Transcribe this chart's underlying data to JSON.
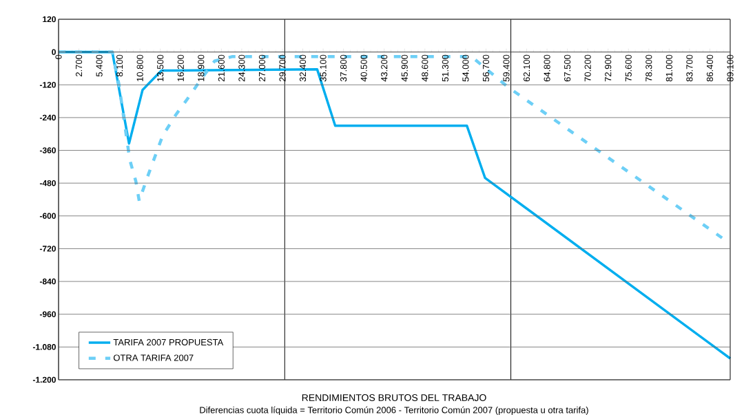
{
  "chart_data": {
    "type": "line",
    "xlabel": "RENDIMIENTOS BRUTOS DEL TRABAJO",
    "annotations": [
      "Diferencias cuota líquida = Territorio Común 2006 - Territorio Común 2007 (propuesta  u otra tarifa)"
    ],
    "series": [
      {
        "name": "TARIFA 2007 PROPUESTA",
        "color": "#00aeef",
        "line_style": "solid",
        "x": [
          0,
          7130,
          9350,
          11140,
          13630,
          34300,
          36700,
          54170,
          56580,
          89100
        ],
        "values": [
          0,
          0,
          -335,
          -139,
          -68,
          -63,
          -270,
          -270,
          -461,
          -1122
        ]
      },
      {
        "name": "OTRA TARIFA 2007",
        "color": "#6dcff6",
        "line_style": "dashed",
        "x": [
          0,
          7130,
          8020,
          9450,
          10250,
          10700,
          11800,
          13800,
          15500,
          17300,
          19000,
          20700,
          23000,
          54800,
          59600,
          88400
        ],
        "values": [
          0,
          0,
          -120,
          -395,
          -473,
          -545,
          -457,
          -307,
          -232,
          -164,
          -96,
          -33,
          -17,
          -17,
          -128,
          -688
        ]
      }
    ],
    "xlim": [
      0,
      89100
    ],
    "xticks": [
      0,
      {
        "value": 2700,
        "label": "2.700"
      },
      {
        "value": 5400,
        "label": "5.400"
      },
      {
        "value": 8100,
        "label": "8.100"
      },
      {
        "value": 10800,
        "label": "10.800"
      },
      {
        "value": 13500,
        "label": "13.500"
      },
      {
        "value": 16200,
        "label": "16.200"
      },
      {
        "value": 18900,
        "label": "18.900"
      },
      {
        "value": 21600,
        "label": "21.600"
      },
      {
        "value": 24300,
        "label": "24.300"
      },
      {
        "value": 27000,
        "label": "27.000"
      },
      {
        "value": 29700,
        "label": "29.700"
      },
      {
        "value": 32400,
        "label": "32.400"
      },
      {
        "value": 35100,
        "label": "35.100"
      },
      {
        "value": 37800,
        "label": "37.800"
      },
      {
        "value": 40500,
        "label": "40.500"
      },
      {
        "value": 43200,
        "label": "43.200"
      },
      {
        "value": 45900,
        "label": "45.900"
      },
      {
        "value": 48600,
        "label": "48.600"
      },
      {
        "value": 51300,
        "label": "51.300"
      },
      {
        "value": 54000,
        "label": "54.000"
      },
      {
        "value": 56700,
        "label": "56.700"
      },
      {
        "value": 59400,
        "label": "59.400"
      },
      {
        "value": 62100,
        "label": "62.100"
      },
      {
        "value": 64800,
        "label": "64.800"
      },
      {
        "value": 67500,
        "label": "67.500"
      },
      {
        "value": 70200,
        "label": "70.200"
      },
      {
        "value": 72900,
        "label": "72.900"
      },
      {
        "value": 75600,
        "label": "75.600"
      },
      {
        "value": 78300,
        "label": "78.300"
      },
      {
        "value": 81000,
        "label": "81.000"
      },
      {
        "value": 83700,
        "label": "83.700"
      },
      {
        "value": 86400,
        "label": "86.400"
      },
      {
        "value": 89100,
        "label": "89.100"
      }
    ],
    "ylim": [
      -1200,
      120
    ],
    "yticks": [
      120,
      0,
      -120,
      -240,
      -360,
      -480,
      -600,
      -720,
      -840,
      -960,
      {
        "value": -1080,
        "label": "-1.080"
      },
      {
        "value": -1200,
        "label": "-1.200"
      }
    ],
    "ref_lines": [
      {
        "axis": "x",
        "value": 30000,
        "color": "#000000"
      },
      {
        "axis": "x",
        "value": 60000,
        "color": "#000000"
      }
    ],
    "grid": "y",
    "legend": "bottom left",
    "marker": "none"
  }
}
